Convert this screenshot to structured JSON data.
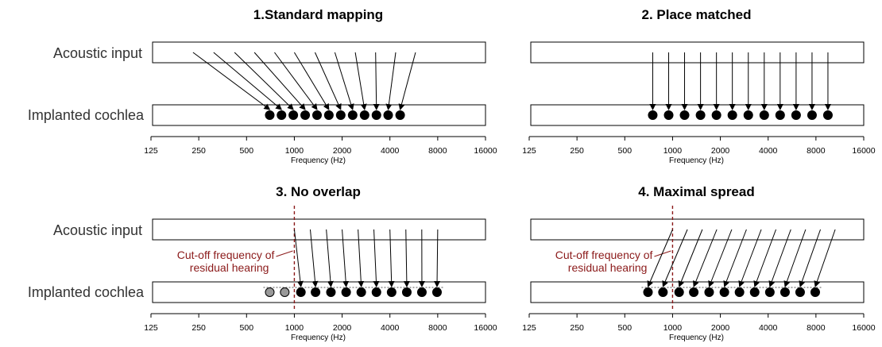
{
  "row_labels": {
    "acoustic": "Acoustic input",
    "implanted": "Implanted cochlea"
  },
  "axis": {
    "ticks": [
      "125",
      "250",
      "500",
      "1000",
      "2000",
      "4000",
      "8000",
      "16000"
    ],
    "label": "Frequency (Hz)"
  },
  "colors": {
    "arrow": "#000000",
    "electrode_active": "#000000",
    "electrode_inactive": "#999999",
    "cutoff": "#8b1a1a"
  },
  "panels": [
    {
      "title": "1.Standard mapping",
      "electrodes_hz": [
        700,
        830,
        985,
        1170,
        1390,
        1650,
        1960,
        2330,
        2770,
        3290,
        3900,
        4640
      ],
      "inputs_hz": [
        230,
        310,
        420,
        560,
        750,
        1000,
        1350,
        1800,
        2420,
        3250,
        4350,
        5800
      ],
      "inactive_count": 0,
      "cutoff_hz": null,
      "cutoff_label": []
    },
    {
      "title": "2. Place matched",
      "electrodes_hz": [
        750,
        945,
        1190,
        1500,
        1890,
        2380,
        3000,
        3780,
        4760,
        6000,
        7560,
        9520
      ],
      "inputs_hz": [
        750,
        945,
        1190,
        1500,
        1890,
        2380,
        3000,
        3780,
        4760,
        6000,
        7560,
        9520
      ],
      "inactive_count": 0,
      "cutoff_hz": null,
      "cutoff_label": []
    },
    {
      "title": "3. No overlap",
      "electrodes_hz": [
        700,
        870,
        1100,
        1360,
        1700,
        2120,
        2640,
        3290,
        4100,
        5110,
        6360,
        7920
      ],
      "inputs_hz": [
        null,
        null,
        1000,
        1260,
        1590,
        2000,
        2520,
        3170,
        4000,
        5040,
        6350,
        8000
      ],
      "inactive_count": 2,
      "cutoff_hz": 1000,
      "cutoff_label": [
        "Cut-off frequency of",
        "residual hearing"
      ]
    },
    {
      "title": "4. Maximal spread",
      "electrodes_hz": [
        700,
        870,
        1100,
        1360,
        1700,
        2120,
        2640,
        3290,
        4100,
        5110,
        6360,
        7920
      ],
      "inputs_hz": [
        1000,
        1240,
        1540,
        1900,
        2360,
        2920,
        3620,
        4480,
        5560,
        6890,
        8540,
        10580
      ],
      "inactive_count": 0,
      "cutoff_hz": 1000,
      "cutoff_label": [
        "Cut-off frequency of",
        "residual hearing"
      ]
    }
  ]
}
